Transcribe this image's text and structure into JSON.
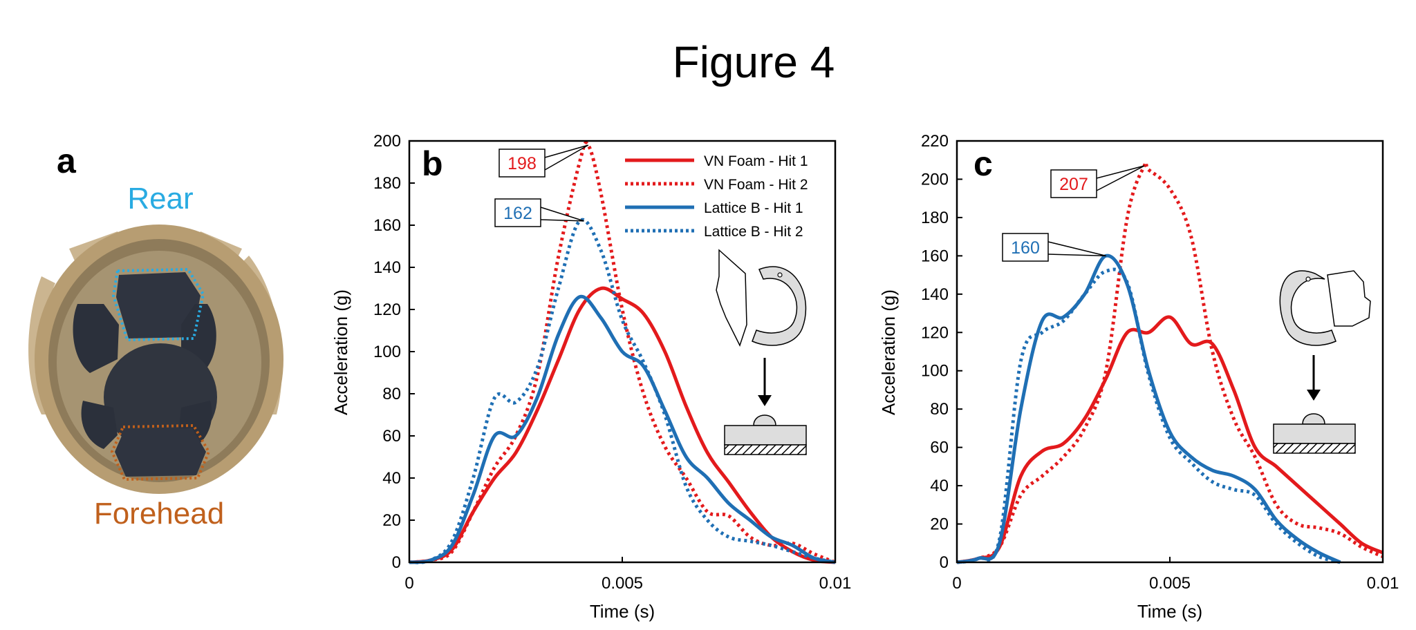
{
  "figure_title": "Figure 4",
  "panel_a": {
    "letter": "a",
    "rear_label": "Rear",
    "forehead_label": "Forehead",
    "colors": {
      "rear": "#29abe2",
      "forehead": "#c0601c"
    }
  },
  "colors": {
    "red": "#e31a1c",
    "blue": "#1f6fb4"
  },
  "chart_data": [
    {
      "type": "line",
      "panel": "b",
      "xlabel": "Time  (s)",
      "ylabel": "Acceleration (g)",
      "xlim": [
        0,
        0.01
      ],
      "ylim": [
        0,
        200
      ],
      "xticks": [
        0,
        0.005,
        0.01
      ],
      "xtick_labels": [
        "0",
        "0.005",
        "0.01"
      ],
      "yticks": [
        0,
        20,
        40,
        60,
        80,
        100,
        120,
        140,
        160,
        180,
        200
      ],
      "legend": "top-right",
      "series": [
        {
          "name": "VN Foam - Hit 1",
          "color": "#e31a1c",
          "style": "solid",
          "x": [
            0,
            0.0005,
            0.001,
            0.0015,
            0.002,
            0.0025,
            0.003,
            0.0035,
            0.004,
            0.0045,
            0.005,
            0.0055,
            0.006,
            0.0065,
            0.007,
            0.0075,
            0.008,
            0.0085,
            0.009,
            0.0095,
            0.01
          ],
          "y": [
            0,
            1,
            6,
            24,
            40,
            52,
            72,
            96,
            120,
            130,
            125,
            118,
            100,
            74,
            52,
            38,
            24,
            12,
            5,
            1,
            0
          ]
        },
        {
          "name": "VN Foam - Hit 2",
          "color": "#e31a1c",
          "style": "dotted",
          "x": [
            0,
            0.0005,
            0.001,
            0.0015,
            0.002,
            0.0025,
            0.003,
            0.0035,
            0.004,
            0.0042,
            0.0045,
            0.005,
            0.0055,
            0.006,
            0.0065,
            0.007,
            0.0075,
            0.008,
            0.0085,
            0.009,
            0.0095,
            0.01
          ],
          "y": [
            0,
            1,
            5,
            24,
            45,
            60,
            88,
            145,
            190,
            198,
            175,
            120,
            80,
            55,
            40,
            24,
            22,
            12,
            8,
            9,
            4,
            0
          ]
        },
        {
          "name": "Lattice B - Hit 1",
          "color": "#1f6fb4",
          "style": "solid",
          "x": [
            0,
            0.0005,
            0.001,
            0.0015,
            0.002,
            0.0025,
            0.003,
            0.0035,
            0.004,
            0.0045,
            0.005,
            0.0055,
            0.006,
            0.0065,
            0.007,
            0.0075,
            0.008,
            0.0085,
            0.009,
            0.0095,
            0.01
          ],
          "y": [
            0,
            1,
            8,
            32,
            60,
            60,
            78,
            108,
            126,
            116,
            100,
            93,
            72,
            50,
            40,
            28,
            20,
            12,
            8,
            2,
            0
          ]
        },
        {
          "name": "Lattice B - Hit 2",
          "color": "#1f6fb4",
          "style": "dotted",
          "x": [
            0,
            0.0005,
            0.001,
            0.0015,
            0.002,
            0.0025,
            0.003,
            0.0035,
            0.004,
            0.0045,
            0.005,
            0.0055,
            0.006,
            0.0065,
            0.007,
            0.0075,
            0.008,
            0.0085,
            0.009,
            0.0095,
            0.01
          ],
          "y": [
            0,
            1,
            10,
            40,
            78,
            76,
            92,
            130,
            162,
            148,
            115,
            95,
            70,
            36,
            20,
            12,
            10,
            8,
            5,
            2,
            0
          ]
        }
      ],
      "annotations": [
        {
          "text": "198",
          "color": "#e31a1c",
          "x": 0.0042,
          "y": 198
        },
        {
          "text": "162",
          "color": "#1f6fb4",
          "x": 0.0041,
          "y": 162
        }
      ]
    },
    {
      "type": "line",
      "panel": "c",
      "xlabel": "Time (s)",
      "ylabel": "Acceleration (g)",
      "xlim": [
        0,
        0.01
      ],
      "ylim": [
        0,
        220
      ],
      "xticks": [
        0,
        0.005,
        0.01
      ],
      "xtick_labels": [
        "0",
        "0.005",
        "0.01"
      ],
      "yticks": [
        0,
        20,
        40,
        60,
        80,
        100,
        120,
        140,
        160,
        180,
        200,
        220
      ],
      "series": [
        {
          "name": "VN Foam - Hit 1",
          "color": "#e31a1c",
          "style": "solid",
          "x": [
            0,
            0.0005,
            0.001,
            0.0015,
            0.002,
            0.0025,
            0.003,
            0.0035,
            0.004,
            0.0045,
            0.005,
            0.0055,
            0.006,
            0.0065,
            0.007,
            0.0075,
            0.008,
            0.0085,
            0.009,
            0.0095,
            0.01
          ],
          "y": [
            0,
            2,
            8,
            45,
            58,
            62,
            75,
            96,
            120,
            120,
            128,
            114,
            114,
            90,
            60,
            50,
            40,
            30,
            20,
            10,
            5
          ]
        },
        {
          "name": "VN Foam - Hit 2",
          "color": "#e31a1c",
          "style": "dotted",
          "x": [
            0,
            0.0005,
            0.001,
            0.0015,
            0.002,
            0.0025,
            0.003,
            0.0035,
            0.004,
            0.0044,
            0.0045,
            0.005,
            0.0055,
            0.006,
            0.0065,
            0.007,
            0.0075,
            0.008,
            0.0085,
            0.009,
            0.0095,
            0.01
          ],
          "y": [
            0,
            2,
            8,
            35,
            45,
            55,
            70,
            100,
            180,
            207,
            205,
            195,
            170,
            110,
            75,
            55,
            30,
            20,
            18,
            15,
            8,
            3
          ]
        },
        {
          "name": "Lattice B - Hit 1",
          "color": "#1f6fb4",
          "style": "solid",
          "x": [
            0,
            0.0005,
            0.001,
            0.0015,
            0.002,
            0.0025,
            0.003,
            0.0035,
            0.004,
            0.0045,
            0.005,
            0.0055,
            0.006,
            0.0065,
            0.007,
            0.0075,
            0.008,
            0.0085,
            0.009
          ],
          "y": [
            0,
            2,
            10,
            80,
            126,
            128,
            140,
            160,
            145,
            100,
            68,
            55,
            48,
            45,
            38,
            22,
            12,
            5,
            0
          ]
        },
        {
          "name": "Lattice B - Hit 2",
          "color": "#1f6fb4",
          "style": "dotted",
          "x": [
            0,
            0.0005,
            0.001,
            0.0015,
            0.002,
            0.0025,
            0.003,
            0.0035,
            0.004,
            0.0045,
            0.005,
            0.0055,
            0.006,
            0.0065,
            0.007,
            0.0075,
            0.008,
            0.0085,
            0.009
          ],
          "y": [
            0,
            2,
            12,
            105,
            120,
            126,
            140,
            152,
            146,
            98,
            65,
            52,
            42,
            38,
            35,
            20,
            10,
            3,
            0
          ]
        }
      ],
      "annotations": [
        {
          "text": "207",
          "color": "#e31a1c",
          "x": 0.0044,
          "y": 207
        },
        {
          "text": "160",
          "color": "#1f6fb4",
          "x": 0.0035,
          "y": 160
        }
      ]
    }
  ]
}
